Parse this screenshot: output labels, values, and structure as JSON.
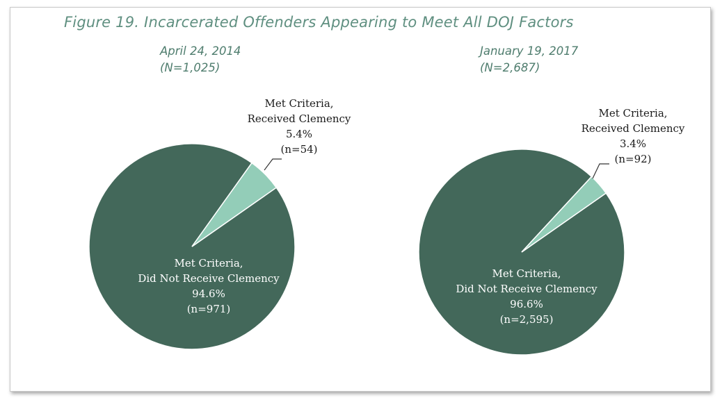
{
  "figure": {
    "title": "Figure 19. Incarcerated Offenders Appearing to Meet All DOJ Factors"
  },
  "colors": {
    "dark_slice": "#43685a",
    "light_slice": "#93cdb8",
    "title_text": "#5f8f80",
    "subtitle_text": "#4f7d6e"
  },
  "chart_data": [
    {
      "type": "pie",
      "title": "April 24, 2014",
      "subtitle": "(N=1,025)",
      "slices": [
        {
          "label_lines": [
            "Met Criteria,",
            "Received Clemency",
            "5.4%",
            "(n=54)"
          ],
          "name": "Met Criteria, Received Clemency",
          "percent": 5.4,
          "n": 54,
          "color": "#93cdb8"
        },
        {
          "label_lines": [
            "Met Criteria,",
            "Did Not Receive Clemency",
            "94.6%",
            "(n=971)"
          ],
          "name": "Met Criteria, Did Not Receive Clemency",
          "percent": 94.6,
          "n": 971,
          "color": "#43685a"
        }
      ]
    },
    {
      "type": "pie",
      "title": "January 19, 2017",
      "subtitle": "(N=2,687)",
      "slices": [
        {
          "label_lines": [
            "Met Criteria,",
            "Received Clemency",
            "3.4%",
            "(n=92)"
          ],
          "name": "Met Criteria, Received Clemency",
          "percent": 3.4,
          "n": 92,
          "color": "#93cdb8"
        },
        {
          "label_lines": [
            "Met Criteria,",
            "Did Not Receive Clemency",
            "96.6%",
            "(n=2,595)"
          ],
          "name": "Met Criteria, Did Not Receive Clemency",
          "percent": 96.6,
          "n": 2595,
          "color": "#43685a"
        }
      ]
    }
  ]
}
